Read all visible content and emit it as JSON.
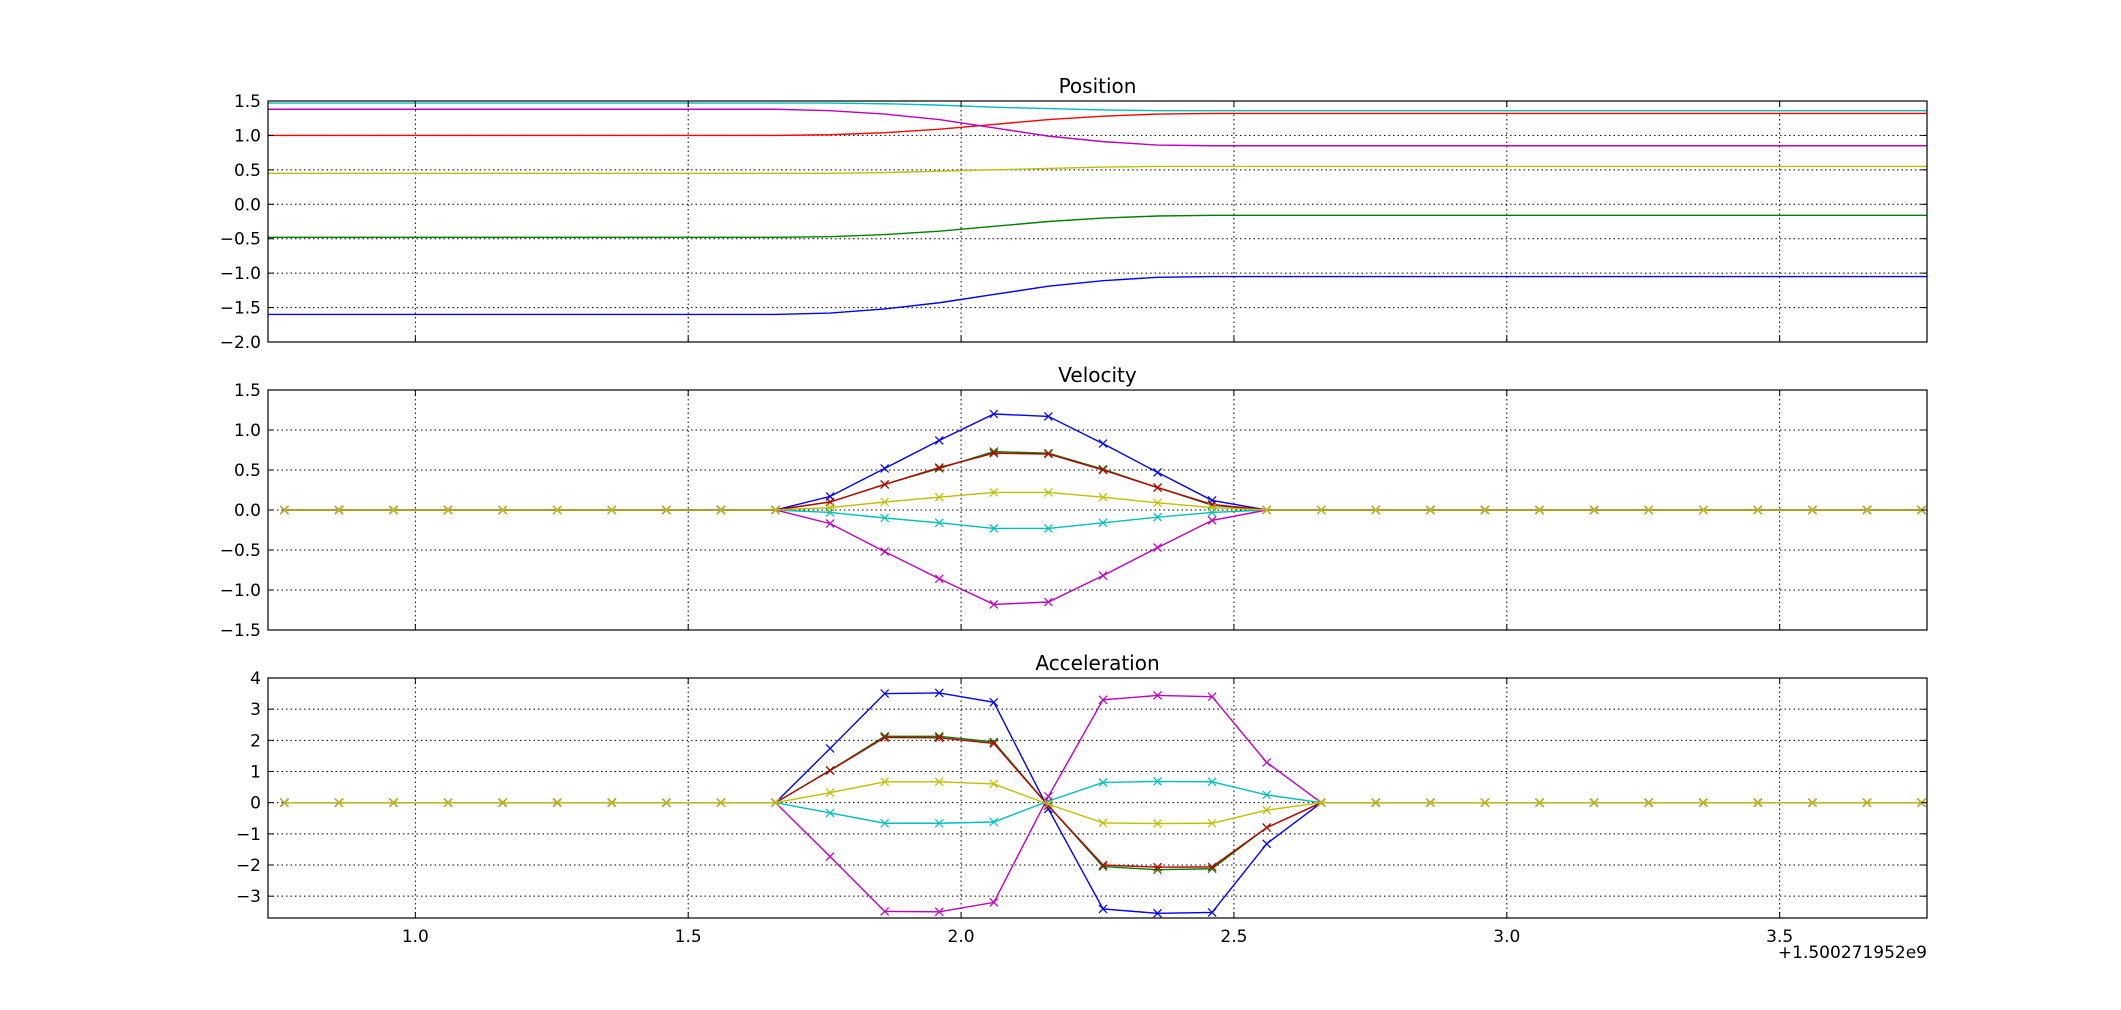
{
  "figure": {
    "offset_text": "+1.500271952e9"
  },
  "chart_data": [
    {
      "type": "line",
      "title": "Position",
      "xlim": [
        0.73,
        3.77
      ],
      "ylim": [
        -2.0,
        1.5
      ],
      "yticks": [
        -2.0,
        -1.5,
        -1.0,
        -0.5,
        0.0,
        0.5,
        1.0,
        1.5
      ],
      "ytick_labels": [
        "−2.0",
        "−1.5",
        "−1.0",
        "−0.5",
        "0.0",
        "0.5",
        "1.0",
        "1.5"
      ],
      "xticks": [
        1.0,
        1.5,
        2.0,
        2.5,
        3.0,
        3.5
      ],
      "xtick_labels": [],
      "grid": true,
      "markers": false,
      "x": [
        0.73,
        1.66,
        1.76,
        1.86,
        1.96,
        2.06,
        2.16,
        2.26,
        2.36,
        2.46,
        2.56,
        3.77
      ],
      "series": [
        {
          "color": "#0000ff",
          "values": [
            -1.6,
            -1.6,
            -1.58,
            -1.52,
            -1.43,
            -1.31,
            -1.19,
            -1.11,
            -1.06,
            -1.05,
            -1.05,
            -1.05
          ]
        },
        {
          "color": "#008000",
          "values": [
            -0.48,
            -0.48,
            -0.47,
            -0.44,
            -0.39,
            -0.32,
            -0.25,
            -0.2,
            -0.17,
            -0.16,
            -0.16,
            -0.16
          ]
        },
        {
          "color": "#ff0000",
          "values": [
            1.0,
            1.0,
            1.01,
            1.04,
            1.09,
            1.16,
            1.23,
            1.28,
            1.31,
            1.32,
            1.32,
            1.32
          ]
        },
        {
          "color": "#00bfbf",
          "values": [
            1.47,
            1.47,
            1.47,
            1.46,
            1.44,
            1.41,
            1.39,
            1.37,
            1.36,
            1.36,
            1.36,
            1.36
          ]
        },
        {
          "color": "#bf00bf",
          "values": [
            1.38,
            1.38,
            1.36,
            1.31,
            1.23,
            1.11,
            0.99,
            0.91,
            0.86,
            0.85,
            0.85,
            0.85
          ]
        },
        {
          "color": "#bfbf00",
          "values": [
            0.45,
            0.45,
            0.45,
            0.46,
            0.48,
            0.5,
            0.52,
            0.54,
            0.55,
            0.55,
            0.55,
            0.55
          ]
        },
        {
          "color": "#006666",
          "values": [
            1.51,
            1.51,
            1.51,
            1.51,
            1.51,
            1.51,
            1.51,
            1.51,
            1.51,
            1.51,
            1.51,
            1.51
          ]
        }
      ]
    },
    {
      "type": "line",
      "title": "Velocity",
      "xlim": [
        0.73,
        3.77
      ],
      "ylim": [
        -1.5,
        1.5
      ],
      "yticks": [
        -1.5,
        -1.0,
        -0.5,
        0.0,
        0.5,
        1.0,
        1.5
      ],
      "ytick_labels": [
        "−1.5",
        "−1.0",
        "−0.5",
        "0.0",
        "0.5",
        "1.0",
        "1.5"
      ],
      "xticks": [
        1.0,
        1.5,
        2.0,
        2.5,
        3.0,
        3.5
      ],
      "xtick_labels": [],
      "grid": true,
      "markers": true,
      "x": [
        0.76,
        0.86,
        0.96,
        1.06,
        1.16,
        1.26,
        1.36,
        1.46,
        1.56,
        1.66,
        1.76,
        1.86,
        1.96,
        2.06,
        2.16,
        2.26,
        2.36,
        2.46,
        2.56,
        2.66,
        2.76,
        2.86,
        2.96,
        3.06,
        3.16,
        3.26,
        3.36,
        3.46,
        3.56,
        3.66,
        3.76
      ],
      "series": [
        {
          "color": "#0000ff",
          "values": [
            0,
            0,
            0,
            0,
            0,
            0,
            0,
            0,
            0,
            0,
            0.17,
            0.52,
            0.87,
            1.2,
            1.17,
            0.83,
            0.47,
            0.12,
            0,
            0,
            0,
            0,
            0,
            0,
            0,
            0,
            0,
            0,
            0,
            0,
            0
          ]
        },
        {
          "color": "#008000",
          "values": [
            0,
            0,
            0,
            0,
            0,
            0,
            0,
            0,
            0,
            0,
            0.1,
            0.32,
            0.52,
            0.73,
            0.71,
            0.51,
            0.28,
            0.06,
            0,
            0,
            0,
            0,
            0,
            0,
            0,
            0,
            0,
            0,
            0,
            0,
            0
          ]
        },
        {
          "color": "#bf0000",
          "values": [
            0,
            0,
            0,
            0,
            0,
            0,
            0,
            0,
            0,
            0,
            0.1,
            0.32,
            0.53,
            0.71,
            0.7,
            0.5,
            0.28,
            0.07,
            0,
            0,
            0,
            0,
            0,
            0,
            0,
            0,
            0,
            0,
            0,
            0,
            0
          ]
        },
        {
          "color": "#00bfbf",
          "values": [
            0,
            0,
            0,
            0,
            0,
            0,
            0,
            0,
            0,
            0,
            -0.03,
            -0.1,
            -0.16,
            -0.23,
            -0.23,
            -0.16,
            -0.09,
            -0.03,
            0,
            0,
            0,
            0,
            0,
            0,
            0,
            0,
            0,
            0,
            0,
            0,
            0
          ]
        },
        {
          "color": "#bf00bf",
          "values": [
            0,
            0,
            0,
            0,
            0,
            0,
            0,
            0,
            0,
            0,
            -0.17,
            -0.52,
            -0.86,
            -1.18,
            -1.15,
            -0.82,
            -0.47,
            -0.13,
            0,
            0,
            0,
            0,
            0,
            0,
            0,
            0,
            0,
            0,
            0,
            0,
            0
          ]
        },
        {
          "color": "#bfbf00",
          "values": [
            0,
            0,
            0,
            0,
            0,
            0,
            0,
            0,
            0,
            0,
            0.03,
            0.1,
            0.16,
            0.22,
            0.22,
            0.16,
            0.09,
            0.03,
            0,
            0,
            0,
            0,
            0,
            0,
            0,
            0,
            0,
            0,
            0,
            0,
            0
          ]
        }
      ]
    },
    {
      "type": "line",
      "title": "Acceleration",
      "xlim": [
        0.73,
        3.77
      ],
      "ylim": [
        -3.7,
        4.0
      ],
      "yticks": [
        -3,
        -2,
        -1,
        0,
        1,
        2,
        3,
        4
      ],
      "ytick_labels": [
        "−3",
        "−2",
        "−1",
        "0",
        "1",
        "2",
        "3",
        "4"
      ],
      "xticks": [
        1.0,
        1.5,
        2.0,
        2.5,
        3.0,
        3.5
      ],
      "xtick_labels": [
        "1.0",
        "1.5",
        "2.0",
        "2.5",
        "3.0",
        "3.5"
      ],
      "grid": true,
      "markers": true,
      "x": [
        0.76,
        0.86,
        0.96,
        1.06,
        1.16,
        1.26,
        1.36,
        1.46,
        1.56,
        1.66,
        1.76,
        1.86,
        1.96,
        2.06,
        2.16,
        2.26,
        2.36,
        2.46,
        2.56,
        2.66,
        2.76,
        2.86,
        2.96,
        3.06,
        3.16,
        3.26,
        3.36,
        3.46,
        3.56,
        3.66,
        3.76
      ],
      "series": [
        {
          "color": "#0000ff",
          "values": [
            0,
            0,
            0,
            0,
            0,
            0,
            0,
            0,
            0,
            0,
            1.74,
            3.5,
            3.52,
            3.22,
            -0.2,
            -3.41,
            -3.55,
            -3.52,
            -1.32,
            0,
            0,
            0,
            0,
            0,
            0,
            0,
            0,
            0,
            0,
            0,
            0
          ]
        },
        {
          "color": "#008000",
          "values": [
            0,
            0,
            0,
            0,
            0,
            0,
            0,
            0,
            0,
            0,
            1.04,
            2.13,
            2.13,
            1.95,
            -0.1,
            -2.05,
            -2.15,
            -2.12,
            -0.8,
            0,
            0,
            0,
            0,
            0,
            0,
            0,
            0,
            0,
            0,
            0,
            0
          ]
        },
        {
          "color": "#bf0000",
          "values": [
            0,
            0,
            0,
            0,
            0,
            0,
            0,
            0,
            0,
            0,
            1.03,
            2.09,
            2.08,
            1.9,
            -0.1,
            -2.0,
            -2.07,
            -2.06,
            -0.8,
            0,
            0,
            0,
            0,
            0,
            0,
            0,
            0,
            0,
            0,
            0,
            0
          ]
        },
        {
          "color": "#00bfbf",
          "values": [
            0,
            0,
            0,
            0,
            0,
            0,
            0,
            0,
            0,
            0,
            -0.33,
            -0.66,
            -0.66,
            -0.62,
            0.05,
            0.65,
            0.68,
            0.67,
            0.25,
            0,
            0,
            0,
            0,
            0,
            0,
            0,
            0,
            0,
            0,
            0,
            0
          ]
        },
        {
          "color": "#bf00bf",
          "values": [
            0,
            0,
            0,
            0,
            0,
            0,
            0,
            0,
            0,
            0,
            -1.73,
            -3.49,
            -3.5,
            -3.2,
            0.2,
            3.3,
            3.44,
            3.4,
            1.29,
            0,
            0,
            0,
            0,
            0,
            0,
            0,
            0,
            0,
            0,
            0,
            0
          ]
        },
        {
          "color": "#bfbf00",
          "values": [
            0,
            0,
            0,
            0,
            0,
            0,
            0,
            0,
            0,
            0,
            0.32,
            0.67,
            0.67,
            0.6,
            -0.05,
            -0.65,
            -0.67,
            -0.66,
            -0.24,
            0,
            0,
            0,
            0,
            0,
            0,
            0,
            0,
            0,
            0,
            0,
            0
          ]
        }
      ]
    }
  ]
}
